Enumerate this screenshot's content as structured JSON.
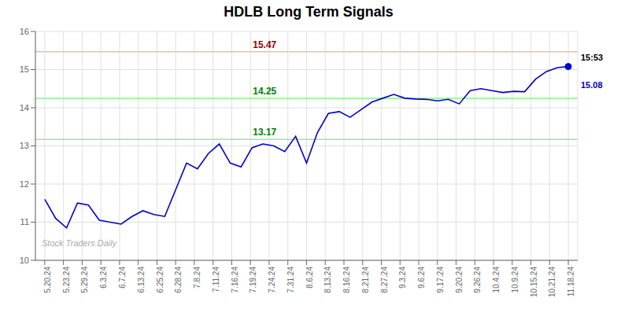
{
  "chart_data": {
    "type": "line",
    "title": "HDLB Long Term Signals",
    "x": [
      0,
      0.5833333333,
      1.1666666667,
      1.75,
      2.3333333333,
      2.9166666667,
      3.5,
      4.0833333333,
      4.6666666667,
      5.25,
      5.8333333333,
      6.4166666667,
      7,
      7.5833333333,
      8.1666666667,
      8.75,
      9.3333333333,
      9.9166666667,
      10.5,
      11.0833333333,
      11.6666666667,
      12.25,
      12.8333333333,
      13.4166666667,
      14,
      14.5833333333,
      15.1666666667,
      15.75,
      16.3333333333,
      16.9166666667,
      17.5,
      18.0833333333,
      18.6666666667,
      19.25,
      19.8333333333,
      20.4166666667,
      21,
      21.5833333333,
      22.1666666667,
      22.75,
      23.3333333333,
      23.9166666667,
      24.5,
      25.0833333333,
      25.6666666667,
      26.25,
      26.8333333333,
      27.4166666667,
      28
    ],
    "values": [
      11.6,
      11.1,
      10.85,
      11.5,
      11.45,
      11.05,
      11.0,
      10.95,
      11.15,
      11.3,
      11.2,
      11.15,
      11.85,
      12.55,
      12.4,
      12.8,
      13.05,
      12.55,
      12.45,
      12.95,
      13.05,
      13.0,
      12.85,
      13.25,
      12.55,
      13.35,
      13.85,
      13.9,
      13.75,
      13.95,
      14.15,
      14.25,
      14.35,
      14.25,
      14.23,
      14.22,
      14.18,
      14.22,
      14.1,
      14.45,
      14.5,
      14.45,
      14.4,
      14.43,
      14.42,
      14.75,
      14.95,
      15.05,
      15.08
    ],
    "color": "#0000cc",
    "xlim": [
      -0.5,
      28.5
    ],
    "xticks": [
      {
        "value": 0,
        "label": "5.20.24"
      },
      {
        "value": 1,
        "label": "5.23.24"
      },
      {
        "value": 2,
        "label": "5.29.24"
      },
      {
        "value": 3,
        "label": "6.3.24"
      },
      {
        "value": 4,
        "label": "6.7.24"
      },
      {
        "value": 5,
        "label": "6.13.24"
      },
      {
        "value": 6,
        "label": "6.25.24"
      },
      {
        "value": 7,
        "label": "6.28.24"
      },
      {
        "value": 8,
        "label": "7.8.24"
      },
      {
        "value": 9,
        "label": "7.11.24"
      },
      {
        "value": 10,
        "label": "7.16.24"
      },
      {
        "value": 11,
        "label": "7.19.24"
      },
      {
        "value": 12,
        "label": "7.24.24"
      },
      {
        "value": 13,
        "label": "7.31.24"
      },
      {
        "value": 14,
        "label": "8.6.24"
      },
      {
        "value": 15,
        "label": "8.13.24"
      },
      {
        "value": 16,
        "label": "8.16.24"
      },
      {
        "value": 17,
        "label": "8.21.24"
      },
      {
        "value": 18,
        "label": "8.27.24"
      },
      {
        "value": 19,
        "label": "9.3.24"
      },
      {
        "value": 20,
        "label": "9.6.24"
      },
      {
        "value": 21,
        "label": "9.17.24"
      },
      {
        "value": 22,
        "label": "9.20.24"
      },
      {
        "value": 23,
        "label": "9.26.24"
      },
      {
        "value": 24,
        "label": "10.4.24"
      },
      {
        "value": 25,
        "label": "10.9.24"
      },
      {
        "value": 26,
        "label": "10.15.24"
      },
      {
        "value": 27,
        "label": "10.21.24"
      },
      {
        "value": 28,
        "label": "11.18.24"
      }
    ],
    "ylim": [
      10,
      16
    ],
    "yticks": [
      10,
      11,
      12,
      13,
      14,
      15,
      16
    ],
    "grid": true,
    "reference_lines": [
      {
        "y": 15.47,
        "label": "15.47",
        "color": "#ffb3b3",
        "label_color": "#990000"
      },
      {
        "y": 14.25,
        "label": "14.25",
        "color": "#90ee90",
        "label_color": "#008000"
      },
      {
        "y": 13.17,
        "label": "13.17",
        "color": "#90ee90",
        "label_color": "#008000"
      }
    ],
    "side_labels": [
      {
        "text": "15:53",
        "color": "#000000"
      },
      {
        "text": "15.08",
        "color": "#0000cc"
      }
    ],
    "watermark": "Stock Traders Daily"
  }
}
